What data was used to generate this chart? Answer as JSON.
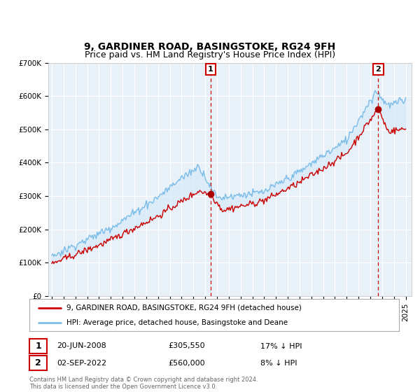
{
  "title": "9, GARDINER ROAD, BASINGSTOKE, RG24 9FH",
  "subtitle": "Price paid vs. HM Land Registry's House Price Index (HPI)",
  "ylim": [
    0,
    700000
  ],
  "yticks": [
    0,
    100000,
    200000,
    300000,
    400000,
    500000,
    600000,
    700000
  ],
  "ytick_labels": [
    "£0",
    "£100K",
    "£200K",
    "£300K",
    "£400K",
    "£500K",
    "£600K",
    "£700K"
  ],
  "xlim_start": 1994.7,
  "xlim_end": 2025.5,
  "hpi_color": "#7bbde8",
  "hpi_fill_color": "#d6eaf8",
  "price_color": "#cc0000",
  "marker_color": "#aa0000",
  "sale1_x": 2008.47,
  "sale1_y": 305550,
  "sale2_x": 2022.67,
  "sale2_y": 560000,
  "vline_color": "#cc0000",
  "annotation1_date": "20-JUN-2008",
  "annotation1_price": "£305,550",
  "annotation1_hpi": "17% ↓ HPI",
  "annotation2_date": "02-SEP-2022",
  "annotation2_price": "£560,000",
  "annotation2_hpi": "8% ↓ HPI",
  "legend1_label": "9, GARDINER ROAD, BASINGSTOKE, RG24 9FH (detached house)",
  "legend2_label": "HPI: Average price, detached house, Basingstoke and Deane",
  "footnote": "Contains HM Land Registry data © Crown copyright and database right 2024.\nThis data is licensed under the Open Government Licence v3.0.",
  "bg_color": "#e8f0f8",
  "grid_color": "#ffffff",
  "title_fontsize": 10,
  "subtitle_fontsize": 9,
  "tick_fontsize": 7.5
}
